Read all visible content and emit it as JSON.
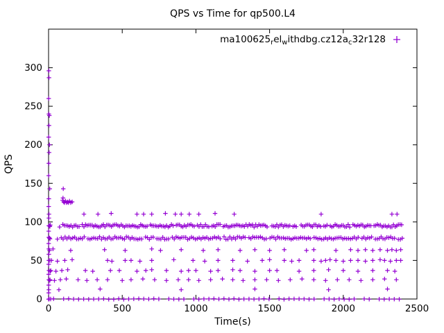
{
  "chart_data": {
    "type": "scatter",
    "title": "QPS vs Time for qp500.L4",
    "xlabel": "Time(s)",
    "ylabel": "QPS",
    "xlim": [
      0,
      2500
    ],
    "ylim": [
      0,
      350
    ],
    "xticks": [
      0,
      500,
      1000,
      1500,
      2000,
      2500
    ],
    "yticks": [
      0,
      50,
      100,
      150,
      200,
      250,
      300
    ],
    "grid": false,
    "legend": {
      "position": "top-inside",
      "marker": "plus",
      "label_plain": "ma100625_rel_withdbg.cz12a_c32r128",
      "label_segments": [
        {
          "t": "ma100625"
        },
        {
          "t": "r",
          "sub": true
        },
        {
          "t": "el"
        },
        {
          "t": "w",
          "sub": true
        },
        {
          "t": "ithdbg.cz12a"
        },
        {
          "t": "c",
          "sub": true
        },
        {
          "t": "32r128"
        }
      ]
    },
    "series": [
      {
        "name": "ma100625_rel_withdbg.cz12a_c32r128",
        "color": "#9400D3",
        "marker": "plus",
        "bands": [
          {
            "y": 95,
            "x_start": 75,
            "x_end": 2400,
            "step": 11,
            "jitter": 1.8,
            "skip": 0.07
          },
          {
            "y": 79,
            "x_start": 60,
            "x_end": 2400,
            "step": 13,
            "jitter": 1.8,
            "skip": 0.1
          },
          {
            "y": 0,
            "x_start": 0,
            "x_end": 2400,
            "step": 34,
            "jitter": 0.4,
            "skip": 0.15
          }
        ],
        "points": [
          [
            2,
            296
          ],
          [
            3,
            287
          ],
          [
            2,
            240
          ],
          [
            5,
            238
          ],
          [
            3,
            225
          ],
          [
            6,
            200
          ],
          [
            4,
            190
          ],
          [
            2,
            176
          ],
          [
            1,
            260
          ],
          [
            1,
            210
          ],
          [
            1,
            160
          ],
          [
            2,
            130
          ],
          [
            1,
            120
          ],
          [
            2,
            105
          ],
          [
            1,
            88
          ],
          [
            1,
            72
          ],
          [
            2,
            58
          ],
          [
            1,
            45
          ],
          [
            1,
            32
          ],
          [
            1,
            18
          ],
          [
            1,
            8
          ],
          [
            8,
            143
          ],
          [
            3,
            110
          ],
          [
            2,
            95
          ],
          [
            5,
            95
          ],
          [
            9,
            94
          ],
          [
            12,
            96
          ],
          [
            2,
            80
          ],
          [
            6,
            79
          ],
          [
            10,
            78
          ],
          [
            2,
            65
          ],
          [
            7,
            63
          ],
          [
            2,
            50
          ],
          [
            9,
            50
          ],
          [
            3,
            37
          ],
          [
            11,
            36
          ],
          [
            2,
            25
          ],
          [
            8,
            24
          ],
          [
            2,
            12
          ],
          [
            4,
            0
          ],
          [
            14,
            0
          ],
          [
            100,
            143
          ],
          [
            95,
            128
          ],
          [
            103,
            126
          ],
          [
            108,
            125
          ],
          [
            115,
            127
          ],
          [
            122,
            125
          ],
          [
            128,
            126
          ],
          [
            135,
            125
          ],
          [
            142,
            127
          ],
          [
            150,
            125
          ],
          [
            160,
            126
          ],
          [
            98,
            131
          ],
          [
            240,
            110
          ],
          [
            335,
            110
          ],
          [
            425,
            111
          ],
          [
            600,
            110
          ],
          [
            645,
            110
          ],
          [
            700,
            110
          ],
          [
            793,
            111
          ],
          [
            860,
            110
          ],
          [
            900,
            110
          ],
          [
            955,
            110
          ],
          [
            1020,
            110
          ],
          [
            1130,
            111
          ],
          [
            1260,
            110
          ],
          [
            1850,
            110
          ],
          [
            2330,
            110
          ],
          [
            2365,
            110
          ],
          [
            30,
            65
          ],
          [
            150,
            63
          ],
          [
            380,
            64
          ],
          [
            520,
            63
          ],
          [
            700,
            65
          ],
          [
            760,
            63
          ],
          [
            900,
            64
          ],
          [
            1050,
            63
          ],
          [
            1150,
            64
          ],
          [
            1300,
            63
          ],
          [
            1400,
            64
          ],
          [
            1500,
            63
          ],
          [
            1600,
            64
          ],
          [
            1750,
            63
          ],
          [
            1800,
            64
          ],
          [
            1950,
            63
          ],
          [
            2050,
            64
          ],
          [
            2100,
            63
          ],
          [
            2150,
            64
          ],
          [
            2200,
            63
          ],
          [
            2250,
            64
          ],
          [
            2300,
            63
          ],
          [
            2330,
            64
          ],
          [
            2360,
            63
          ],
          [
            2390,
            64
          ],
          [
            20,
            50
          ],
          [
            60,
            49
          ],
          [
            110,
            50
          ],
          [
            160,
            51
          ],
          [
            400,
            50
          ],
          [
            430,
            49
          ],
          [
            520,
            50
          ],
          [
            560,
            50
          ],
          [
            620,
            49
          ],
          [
            700,
            50
          ],
          [
            850,
            51
          ],
          [
            980,
            50
          ],
          [
            1060,
            49
          ],
          [
            1150,
            50
          ],
          [
            1250,
            50
          ],
          [
            1350,
            49
          ],
          [
            1450,
            50
          ],
          [
            1500,
            51
          ],
          [
            1600,
            50
          ],
          [
            1650,
            49
          ],
          [
            1700,
            50
          ],
          [
            1800,
            50
          ],
          [
            1850,
            49
          ],
          [
            1880,
            50
          ],
          [
            1910,
            51
          ],
          [
            1950,
            50
          ],
          [
            2000,
            49
          ],
          [
            2050,
            50
          ],
          [
            2100,
            50
          ],
          [
            2150,
            49
          ],
          [
            2200,
            50
          ],
          [
            2250,
            51
          ],
          [
            2280,
            50
          ],
          [
            2320,
            49
          ],
          [
            2360,
            50
          ],
          [
            2390,
            50
          ],
          [
            15,
            37
          ],
          [
            50,
            36
          ],
          [
            90,
            37
          ],
          [
            130,
            38
          ],
          [
            250,
            37
          ],
          [
            300,
            36
          ],
          [
            420,
            37
          ],
          [
            480,
            37
          ],
          [
            600,
            36
          ],
          [
            660,
            37
          ],
          [
            700,
            38
          ],
          [
            800,
            37
          ],
          [
            900,
            36
          ],
          [
            950,
            37
          ],
          [
            1000,
            37
          ],
          [
            1100,
            36
          ],
          [
            1150,
            37
          ],
          [
            1250,
            38
          ],
          [
            1300,
            37
          ],
          [
            1400,
            36
          ],
          [
            1500,
            37
          ],
          [
            1550,
            37
          ],
          [
            1700,
            36
          ],
          [
            1800,
            37
          ],
          [
            1900,
            38
          ],
          [
            2000,
            37
          ],
          [
            2100,
            36
          ],
          [
            2200,
            37
          ],
          [
            2300,
            37
          ],
          [
            2350,
            36
          ],
          [
            10,
            25
          ],
          [
            40,
            24
          ],
          [
            80,
            25
          ],
          [
            120,
            26
          ],
          [
            200,
            25
          ],
          [
            260,
            24
          ],
          [
            330,
            25
          ],
          [
            400,
            25
          ],
          [
            500,
            24
          ],
          [
            560,
            25
          ],
          [
            640,
            26
          ],
          [
            720,
            25
          ],
          [
            800,
            24
          ],
          [
            880,
            25
          ],
          [
            950,
            25
          ],
          [
            1020,
            24
          ],
          [
            1100,
            25
          ],
          [
            1180,
            26
          ],
          [
            1250,
            25
          ],
          [
            1320,
            24
          ],
          [
            1400,
            25
          ],
          [
            1480,
            25
          ],
          [
            1560,
            24
          ],
          [
            1640,
            25
          ],
          [
            1720,
            26
          ],
          [
            1800,
            25
          ],
          [
            1880,
            24
          ],
          [
            1960,
            25
          ],
          [
            2040,
            25
          ],
          [
            2120,
            24
          ],
          [
            2200,
            25
          ],
          [
            2280,
            26
          ],
          [
            2360,
            25
          ],
          [
            70,
            12
          ],
          [
            350,
            13
          ],
          [
            900,
            12
          ],
          [
            1400,
            13
          ],
          [
            1900,
            12
          ],
          [
            2300,
            13
          ]
        ]
      }
    ]
  }
}
